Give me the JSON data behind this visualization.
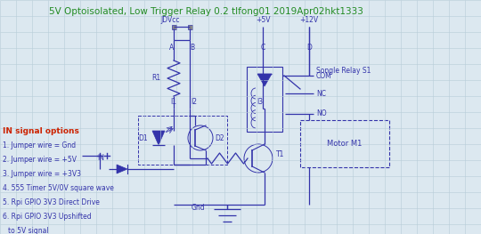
{
  "title": "5V Optoisolated, Low Trigger Relay 0.2 tlfong01 2019Apr02hkt1333",
  "title_color": "#228B22",
  "title_fontsize": 7.5,
  "bg_color": "#dce8f0",
  "circuit_color": "#3333aa",
  "text_color_red": "#cc2200",
  "in_signal_options": [
    "IN signal options",
    "1. Jumper wire = Gnd",
    "2. Jumper wire = +5V",
    "3. Jumper wire = +3V3",
    "4. 555 Timer 5V/0V square wave",
    "5. Rpi GPIO 3V3 Direct Drive",
    "6. Rpi GPIO 3V3 Upshifted",
    "to 5V signal"
  ],
  "grid_color": "#b8ccd8",
  "grid_step": 0.052
}
